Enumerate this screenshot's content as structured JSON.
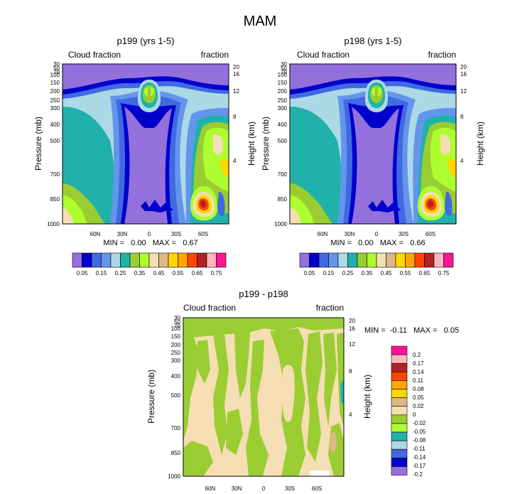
{
  "page_title": "MAM",
  "chart_data": [
    {
      "type": "contour",
      "title": "p199 (yrs 1-5)",
      "left_label": "Cloud fraction",
      "right_label": "fraction",
      "ylabel": "Pressure (mb)",
      "y2label": "Height (km)",
      "pressure_ticks": [
        "30",
        "50",
        "70",
        "100",
        "150",
        "200",
        "250",
        "300",
        "400",
        "500",
        "700",
        "850",
        "1000"
      ],
      "height_ticks": [
        "20",
        "16",
        "12",
        "8",
        "4"
      ],
      "lat_ticks": [
        "60N",
        "30N",
        "0",
        "30S",
        "60S"
      ],
      "stats": "MIN =   0.00   MAX =   0.67",
      "levels": [
        "0.05",
        "0.15",
        "0.25",
        "0.35",
        "0.45",
        "0.55",
        "0.65",
        "0.75"
      ],
      "palette": [
        "#9370db",
        "#0000cd",
        "#4169e1",
        "#6495ed",
        "#add8e6",
        "#20b2aa",
        "#9acd32",
        "#adff2f",
        "#f5deb3",
        "#deb887",
        "#ffd700",
        "#ffa500",
        "#ff4500",
        "#b22222",
        "#ffb6c1",
        "#ff1493"
      ]
    },
    {
      "type": "contour",
      "title": "p198 (yrs 1-5)",
      "left_label": "Cloud fraction",
      "right_label": "fraction",
      "ylabel": "Pressure (mb)",
      "y2label": "Height (km)",
      "pressure_ticks": [
        "30",
        "50",
        "70",
        "100",
        "150",
        "200",
        "250",
        "300",
        "400",
        "500",
        "700",
        "850",
        "1000"
      ],
      "height_ticks": [
        "20",
        "16",
        "12",
        "8",
        "4"
      ],
      "lat_ticks": [
        "60N",
        "30N",
        "0",
        "30S",
        "60S"
      ],
      "stats": "MIN =   0.00   MAX =   0.66",
      "levels": [
        "0.05",
        "0.15",
        "0.25",
        "0.35",
        "0.45",
        "0.55",
        "0.65",
        "0.75"
      ],
      "palette": [
        "#9370db",
        "#0000cd",
        "#4169e1",
        "#6495ed",
        "#add8e6",
        "#20b2aa",
        "#9acd32",
        "#adff2f",
        "#f5deb3",
        "#deb887",
        "#ffd700",
        "#ffa500",
        "#ff4500",
        "#b22222",
        "#ffb6c1",
        "#ff1493"
      ]
    },
    {
      "type": "contour",
      "title": "p199 - p198",
      "left_label": "Cloud fraction",
      "right_label": "fraction",
      "ylabel": "Pressure (mb)",
      "y2label": "Height (km)",
      "pressure_ticks": [
        "30",
        "50",
        "70",
        "100",
        "150",
        "200",
        "250",
        "300",
        "400",
        "500",
        "700",
        "850",
        "1000"
      ],
      "height_ticks": [
        "20",
        "16",
        "12",
        "8",
        "4"
      ],
      "lat_ticks": [
        "60N",
        "30N",
        "0",
        "30S",
        "60S"
      ],
      "stats": "MIN =  -0.11   MAX =   0.05",
      "levels": [
        "0.2",
        "0.17",
        "0.14",
        "0.11",
        "0.08",
        "0.05",
        "0.02",
        "0",
        "-0.02",
        "-0.05",
        "-0.08",
        "-0.11",
        "-0.14",
        "-0.17",
        "-0.2"
      ],
      "palette": [
        "#ff1493",
        "#ffb6c1",
        "#b22222",
        "#ff4500",
        "#ffa500",
        "#ffd700",
        "#deb887",
        "#f5deb3",
        "#9acd32",
        "#adff2f",
        "#20b2aa",
        "#add8e6",
        "#4169e1",
        "#0000cd",
        "#9370db"
      ]
    }
  ]
}
